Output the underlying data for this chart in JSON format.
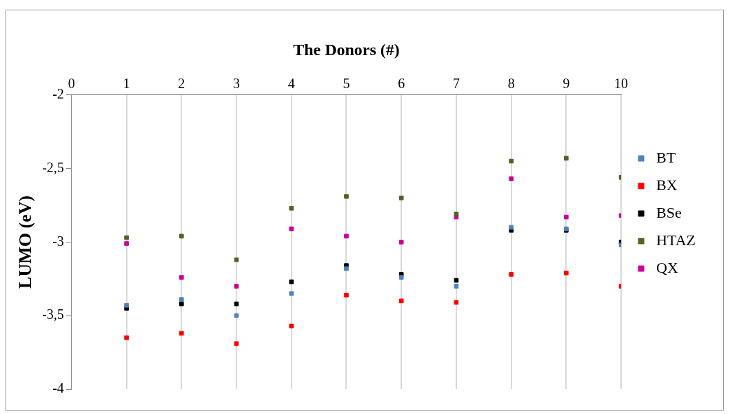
{
  "chart_data": {
    "type": "scatter",
    "xlabel": "The Donors (#)",
    "ylabel": "LUMO (eV)",
    "x": [
      1,
      2,
      3,
      4,
      5,
      6,
      7,
      8,
      9,
      10
    ],
    "series": [
      {
        "name": "BT",
        "color": "#4f81bd",
        "values": [
          -3.43,
          -3.39,
          -3.5,
          -3.35,
          -3.18,
          -3.24,
          -3.3,
          -2.9,
          -2.91,
          -3.02
        ]
      },
      {
        "name": "BX",
        "color": "#ff0000",
        "values": [
          -3.65,
          -3.62,
          -3.69,
          -3.57,
          -3.36,
          -3.4,
          -3.41,
          -3.22,
          -3.21,
          -3.3
        ]
      },
      {
        "name": "BSe",
        "color": "#000000",
        "values": [
          -3.45,
          -3.42,
          -3.42,
          -3.27,
          -3.16,
          -3.22,
          -3.26,
          -2.92,
          -2.92,
          -3.0
        ]
      },
      {
        "name": "HTAZ",
        "color": "#4f6228",
        "values": [
          -2.97,
          -2.96,
          -3.12,
          -2.77,
          -2.69,
          -2.7,
          -2.81,
          -2.45,
          -2.43,
          -2.56
        ]
      },
      {
        "name": "QX",
        "color": "#cc0099",
        "values": [
          -3.01,
          -3.24,
          -3.3,
          -2.91,
          -2.96,
          -3.0,
          -2.83,
          -2.57,
          -2.83,
          -2.82
        ]
      }
    ],
    "xlim": [
      0,
      10
    ],
    "xticks": [
      0,
      1,
      2,
      3,
      4,
      5,
      6,
      7,
      8,
      9,
      10
    ],
    "ylim": [
      -4,
      -2
    ],
    "yticks": [
      -4,
      {
        "value": -3.5,
        "label": "-3,5"
      },
      -3,
      {
        "value": -2.5,
        "label": "-2,5"
      },
      -2
    ],
    "grid": "x",
    "legend": "right",
    "marker": "square"
  }
}
